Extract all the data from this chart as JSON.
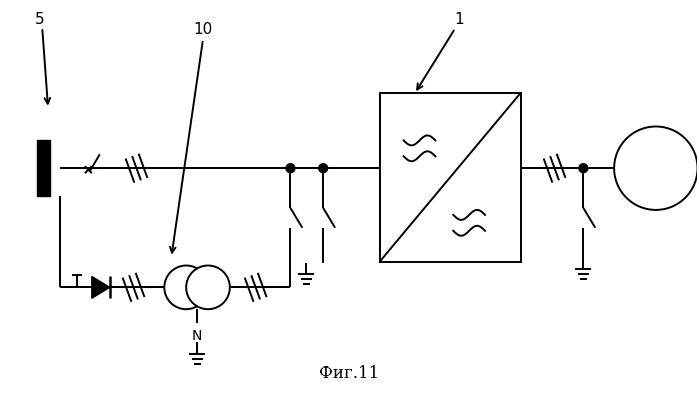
{
  "title": "Фиг.11",
  "label_5": "5",
  "label_10": "10",
  "label_1": "1",
  "label_N": "N",
  "bg_color": "#ffffff",
  "line_color": "#000000",
  "fig_width": 6.99,
  "fig_height": 3.95,
  "dpi": 100
}
